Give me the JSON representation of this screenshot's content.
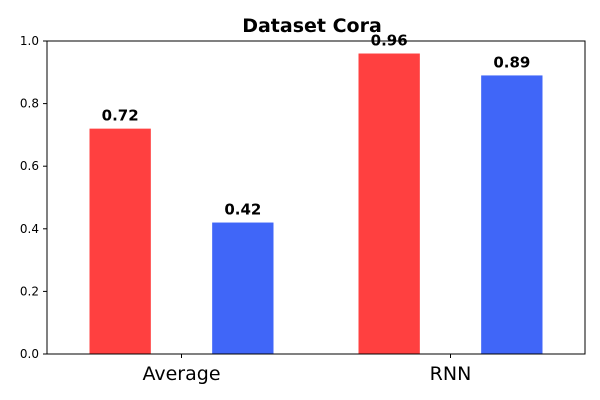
{
  "chart_data": {
    "type": "bar",
    "title": "Dataset Cora",
    "categories": [
      "Average",
      "RNN"
    ],
    "series": [
      {
        "values": [
          0.72,
          0.96
        ],
        "color": "#ff4040"
      },
      {
        "values": [
          0.42,
          0.89
        ],
        "color": "#4066f8"
      }
    ],
    "data_labels": [
      [
        "0.72",
        "0.96"
      ],
      [
        "0.42",
        "0.89"
      ]
    ],
    "ylim": [
      0,
      1.0
    ],
    "yticks": [
      "0.0",
      "0.2",
      "0.4",
      "0.6",
      "0.8",
      "1.0"
    ],
    "grid": false,
    "xlabel": "",
    "ylabel": ""
  }
}
